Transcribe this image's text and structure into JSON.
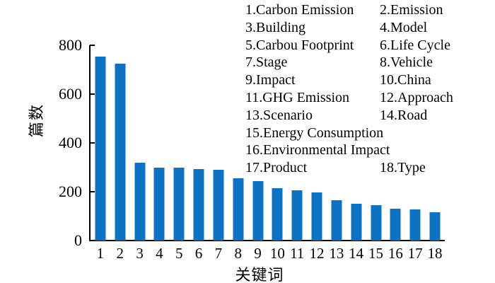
{
  "figure": {
    "background": "#ffffff",
    "axis_color": "#000000"
  },
  "chart_data": {
    "type": "bar",
    "title": "",
    "xlabel": "关键词",
    "ylabel": "篇数",
    "categories": [
      "1",
      "2",
      "3",
      "4",
      "5",
      "6",
      "7",
      "8",
      "9",
      "10",
      "11",
      "12",
      "13",
      "14",
      "15",
      "16",
      "17",
      "18"
    ],
    "values": [
      755,
      725,
      318,
      299,
      298,
      293,
      289,
      254,
      243,
      214,
      206,
      196,
      166,
      152,
      146,
      131,
      127,
      117
    ],
    "ylim": [
      0,
      800
    ],
    "yticks": [
      0,
      200,
      400,
      600,
      800
    ],
    "grid": false,
    "bar_color": "#0e72c2",
    "legend_position": "top-right",
    "legend_rows": [
      [
        "1.Carbon Emission",
        "2.Emission"
      ],
      [
        "3.Building",
        "4.Model"
      ],
      [
        "5.Carbou Footprint",
        "6.Life Cycle"
      ],
      [
        "7.Stage",
        "8.Vehicle"
      ],
      [
        "9.Impact",
        "10.China"
      ],
      [
        "11.GHG Emission",
        "12.Approach"
      ],
      [
        "13.Scenario",
        "14.Road"
      ],
      [
        "15.Energy Consumption",
        ""
      ],
      [
        "16.Environmental Impact",
        ""
      ],
      [
        "17.Product",
        "18.Type"
      ]
    ]
  }
}
